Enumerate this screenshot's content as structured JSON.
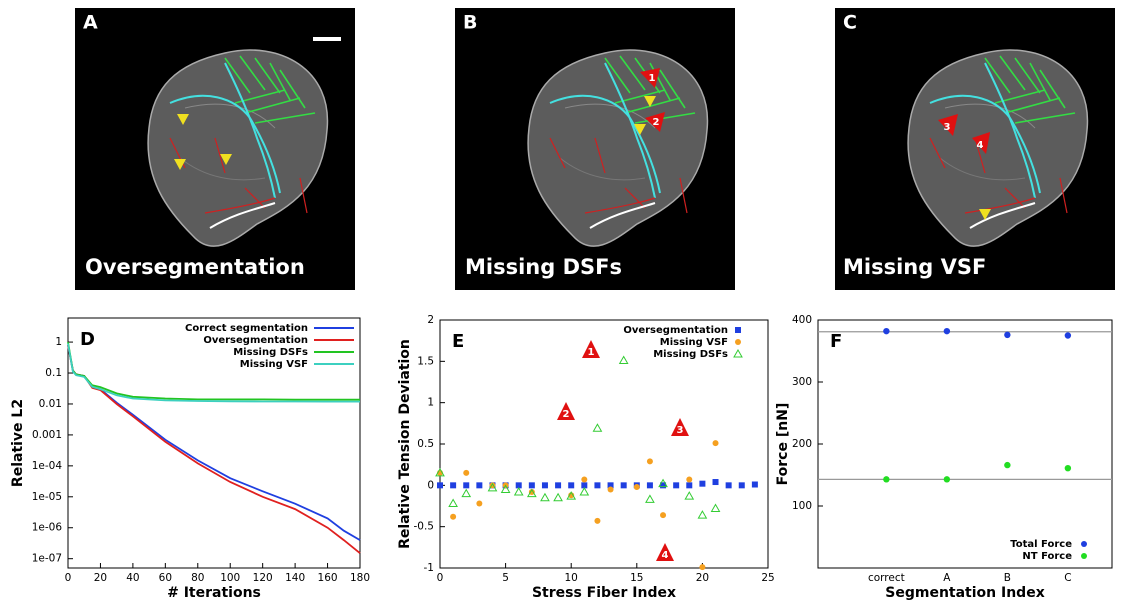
{
  "panels": [
    {
      "letter": "A",
      "caption": "Oversegmentation",
      "markers": []
    },
    {
      "letter": "B",
      "caption": "Missing DSFs",
      "markers": [
        "1",
        "2"
      ]
    },
    {
      "letter": "C",
      "caption": "Missing VSF",
      "markers": [
        "3",
        "4"
      ]
    }
  ],
  "chart_data": [
    {
      "type": "line",
      "panel": "D",
      "x_label": "# Iterations",
      "y_label": "Relative L2",
      "log_y": true,
      "x": [
        0,
        3,
        5,
        10,
        15,
        20,
        30,
        40,
        60,
        80,
        100,
        120,
        140,
        160,
        170,
        180
      ],
      "xlim": [
        0,
        180
      ],
      "xticks": [
        0,
        20,
        40,
        60,
        80,
        100,
        120,
        140,
        160,
        180
      ],
      "ylim": [
        5e-08,
        6
      ],
      "yticks": [
        1,
        0.1,
        0.01,
        0.001,
        {
          "value": 0.0001,
          "label": "1e-04"
        },
        {
          "value": 1e-05,
          "label": "1e-05"
        },
        {
          "value": 1e-06,
          "label": "1e-06"
        },
        {
          "value": 1e-07,
          "label": "1e-07"
        }
      ],
      "legend": "upper right",
      "series": [
        {
          "name": "Correct segmentation",
          "color": "#1f3fe0",
          "values": [
            0.8,
            0.12,
            0.09,
            0.08,
            0.035,
            0.03,
            0.011,
            0.0045,
            0.0007,
            0.00015,
            4e-05,
            1.5e-05,
            6e-06,
            2e-06,
            8e-07,
            4e-07
          ]
        },
        {
          "name": "Oversegmentation",
          "color": "#e0201f",
          "values": [
            0.8,
            0.12,
            0.09,
            0.08,
            0.033,
            0.028,
            0.01,
            0.004,
            0.0006,
            0.00012,
            3e-05,
            1e-05,
            4e-06,
            1e-06,
            4e-07,
            1.5e-07
          ]
        },
        {
          "name": "Missing DSFs",
          "color": "#22c422",
          "values": [
            1,
            0.12,
            0.09,
            0.08,
            0.04,
            0.035,
            0.022,
            0.017,
            0.015,
            0.014,
            0.014,
            0.014,
            0.0138,
            0.0137,
            0.0137,
            0.0137
          ]
        },
        {
          "name": "Missing VSF",
          "color": "#3cd0c0",
          "values": [
            0.9,
            0.11,
            0.085,
            0.075,
            0.036,
            0.03,
            0.019,
            0.015,
            0.013,
            0.0125,
            0.0122,
            0.012,
            0.012,
            0.0119,
            0.0119,
            0.0119
          ]
        }
      ]
    },
    {
      "type": "scatter",
      "panel": "E",
      "x_label": "Stress Fiber Index",
      "y_label": "Relative Tension Deviation",
      "xlim": [
        0,
        25
      ],
      "xticks": [
        0,
        5,
        10,
        15,
        20,
        25
      ],
      "ylim": [
        -1,
        2
      ],
      "yticks": [
        -1,
        -0.5,
        0,
        0.5,
        1,
        1.5,
        2
      ],
      "legend": "upper right",
      "annotations": [
        "1",
        "2",
        "3",
        "4"
      ],
      "series": [
        {
          "name": "Oversegmentation",
          "color": "#1f3fe0",
          "marker": "square",
          "x": [
            0,
            1,
            2,
            3,
            4,
            5,
            6,
            7,
            8,
            9,
            10,
            11,
            12,
            13,
            14,
            15,
            16,
            17,
            18,
            19,
            20,
            21,
            22,
            23,
            24
          ],
          "values": [
            0,
            0,
            0,
            0,
            0,
            0,
            0,
            0,
            0,
            0,
            0,
            0,
            0,
            0,
            0,
            0,
            0,
            0,
            0,
            0,
            0.02,
            0.04,
            0,
            0,
            0.01
          ]
        },
        {
          "name": "Missing VSF",
          "color": "#f5a020",
          "marker": "circle",
          "x": [
            0,
            1,
            2,
            3,
            4,
            5,
            7,
            10,
            11,
            12,
            13,
            15,
            16,
            17,
            19,
            20,
            21
          ],
          "values": [
            0.15,
            -0.38,
            0.15,
            -0.22,
            0,
            0,
            -0.08,
            -0.12,
            0.07,
            -0.43,
            -0.05,
            -0.02,
            0.29,
            -0.36,
            0.07,
            -0.99,
            0.51
          ]
        },
        {
          "name": "Missing DSFs",
          "color": "#33cc33",
          "marker": "triangle",
          "x": [
            0,
            1,
            2,
            4,
            5,
            6,
            7,
            8,
            9,
            10,
            11,
            12,
            14,
            16,
            17,
            19,
            20,
            21
          ],
          "values": [
            0.15,
            -0.22,
            -0.1,
            -0.03,
            -0.05,
            -0.08,
            -0.1,
            -0.15,
            -0.15,
            -0.13,
            -0.08,
            0.69,
            1.51,
            -0.17,
            0.02,
            -0.13,
            -0.36,
            -0.28
          ]
        }
      ]
    },
    {
      "type": "dot",
      "panel": "F",
      "x_label": "Segmentation Index",
      "y_label": "Force [nN]",
      "categories": [
        "correct",
        "A",
        "B",
        "C"
      ],
      "ylim": [
        0,
        400
      ],
      "yticks": [
        100,
        200,
        300,
        400
      ],
      "hlines": [
        381,
        143
      ],
      "legend": "lower right",
      "series": [
        {
          "name": "Total Force",
          "color": "#1f3fe0",
          "values": [
            382,
            382,
            376,
            375
          ]
        },
        {
          "name": "NT Force",
          "color": "#22dd22",
          "values": [
            143,
            143,
            166,
            161
          ]
        }
      ]
    }
  ]
}
